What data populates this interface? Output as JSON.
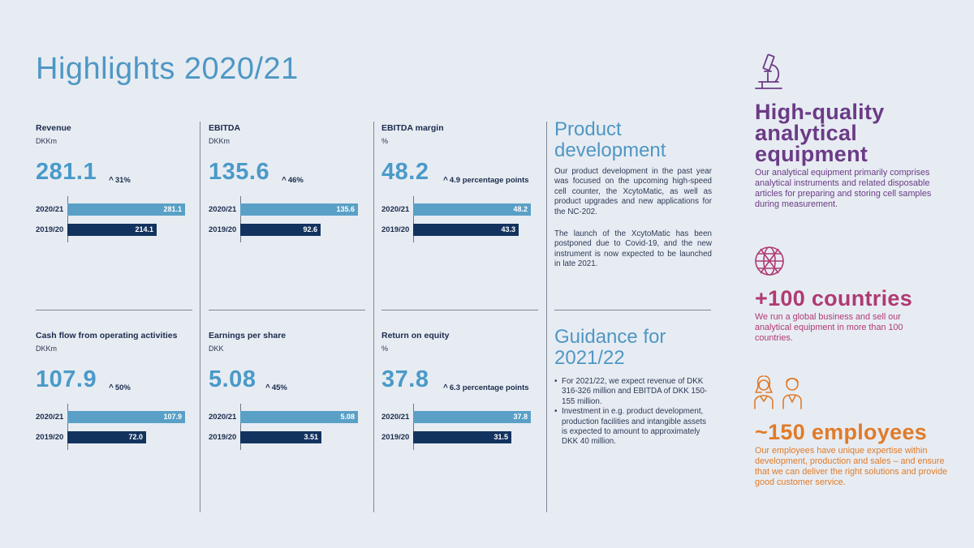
{
  "title": "Highlights 2020/21",
  "kpis": [
    {
      "label": "Revenue",
      "unit": "DKKm",
      "value": "281.1",
      "change": "31%",
      "bars": [
        {
          "year": "2020/21",
          "value": 281.1,
          "label": "281.1"
        },
        {
          "year": "2019/20",
          "value": 214.1,
          "label": "214.1"
        }
      ]
    },
    {
      "label": "EBITDA",
      "unit": "DKKm",
      "value": "135.6",
      "change": "46%",
      "bars": [
        {
          "year": "2020/21",
          "value": 135.6,
          "label": "135.6"
        },
        {
          "year": "2019/20",
          "value": 92.6,
          "label": "92.6"
        }
      ]
    },
    {
      "label": "EBITDA margin",
      "unit": "%",
      "value": "48.2",
      "change": "4.9 percentage points",
      "bars": [
        {
          "year": "2020/21",
          "value": 48.2,
          "label": "48.2"
        },
        {
          "year": "2019/20",
          "value": 43.3,
          "label": "43.3"
        }
      ]
    },
    {
      "label": "Cash flow from operating activities",
      "unit": "DKKm",
      "value": "107.9",
      "change": "50%",
      "bars": [
        {
          "year": "2020/21",
          "value": 107.9,
          "label": "107.9"
        },
        {
          "year": "2019/20",
          "value": 72.0,
          "label": "72.0"
        }
      ]
    },
    {
      "label": "Earnings per share",
      "unit": "DKK",
      "value": "5.08",
      "change": "45%",
      "bars": [
        {
          "year": "2020/21",
          "value": 5.08,
          "label": "5.08"
        },
        {
          "year": "2019/20",
          "value": 3.51,
          "label": "3.51"
        }
      ]
    },
    {
      "label": "Return on equity",
      "unit": "%",
      "value": "37.8",
      "change": "6.3 percentage points",
      "bars": [
        {
          "year": "2020/21",
          "value": 37.8,
          "label": "37.8"
        },
        {
          "year": "2019/20",
          "value": 31.5,
          "label": "31.5"
        }
      ]
    }
  ],
  "product_development": {
    "title_line1": "Product",
    "title_line2": "development",
    "para1": "Our product development in the past year was focused on the upcoming high-speed cell counter, the XcytoMatic, as well as product upgrades and new applications for the NC-202.",
    "para2": "The launch of the XcytoMatic has been postponed due to Covid-19, and the new instrument is now expected to be launched in late 2021."
  },
  "guidance": {
    "title_line1": "Guidance for",
    "title_line2": "2021/22",
    "bullet1": "For 2021/22, we expect revenue of DKK 316-326 million and EBITDA of DKK 150-155 million.",
    "bullet2": "Investment in e.g. product development, production facilities and intangible assets is expected to amount to approximately DKK 40 million."
  },
  "features": {
    "equipment": {
      "title_line1": "High-quality",
      "title_line2": "analytical",
      "title_line3": "equipment",
      "text": "Our analytical equipment primarily comprises analytical instruments and related disposable articles for preparing and storing cell samples during measurement.",
      "color": "#6b3b86",
      "icon": "microscope-icon"
    },
    "countries": {
      "title": "+100 countries",
      "text": "We run a global business and sell our analytical equipment in more than 100 countries.",
      "color": "#b03a72",
      "icon": "globe-icon"
    },
    "employees": {
      "title": "~150 employees",
      "text": "Our employees have unique expertise within development, production and sales – and ensure that we can deliver the right solutions and provide good customer service.",
      "color": "#e07b28",
      "icon": "people-icon"
    }
  }
}
